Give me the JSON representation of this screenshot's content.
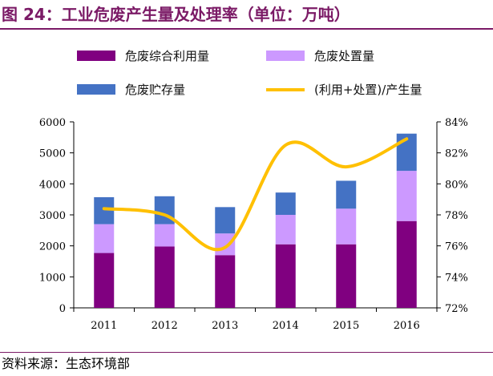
{
  "title": "图 24：工业危废产生量及处理率（单位：万吨）",
  "source": "资料来源：生态环境部",
  "chart_data": {
    "type": "bar",
    "stacked": true,
    "categories": [
      "2011",
      "2012",
      "2013",
      "2014",
      "2015",
      "2016"
    ],
    "series": [
      {
        "name": "危废综合利用量",
        "type": "bar",
        "axis": "left",
        "color": "#800080",
        "values": [
          1770,
          1980,
          1700,
          2050,
          2050,
          2800
        ]
      },
      {
        "name": "危废处置量",
        "type": "bar",
        "axis": "left",
        "color": "#cc99ff",
        "values": [
          930,
          720,
          700,
          950,
          1150,
          1620
        ]
      },
      {
        "name": "危废贮存量",
        "type": "bar",
        "axis": "left",
        "color": "#4472c4",
        "values": [
          870,
          900,
          850,
          720,
          900,
          1200
        ]
      },
      {
        "name": "(利用+处置)/产生量",
        "type": "line",
        "axis": "right",
        "color": "#ffc000",
        "values": [
          78.4,
          78.0,
          75.9,
          82.5,
          81.1,
          82.9
        ]
      }
    ],
    "y_left": {
      "min": 0,
      "max": 6000,
      "ticks": [
        "0",
        "1000",
        "2000",
        "3000",
        "4000",
        "5000",
        "6000"
      ]
    },
    "y_right": {
      "min": 72,
      "max": 84,
      "ticks": [
        "72%",
        "74%",
        "76%",
        "78%",
        "80%",
        "82%",
        "84%"
      ]
    },
    "legend_position": "top"
  }
}
